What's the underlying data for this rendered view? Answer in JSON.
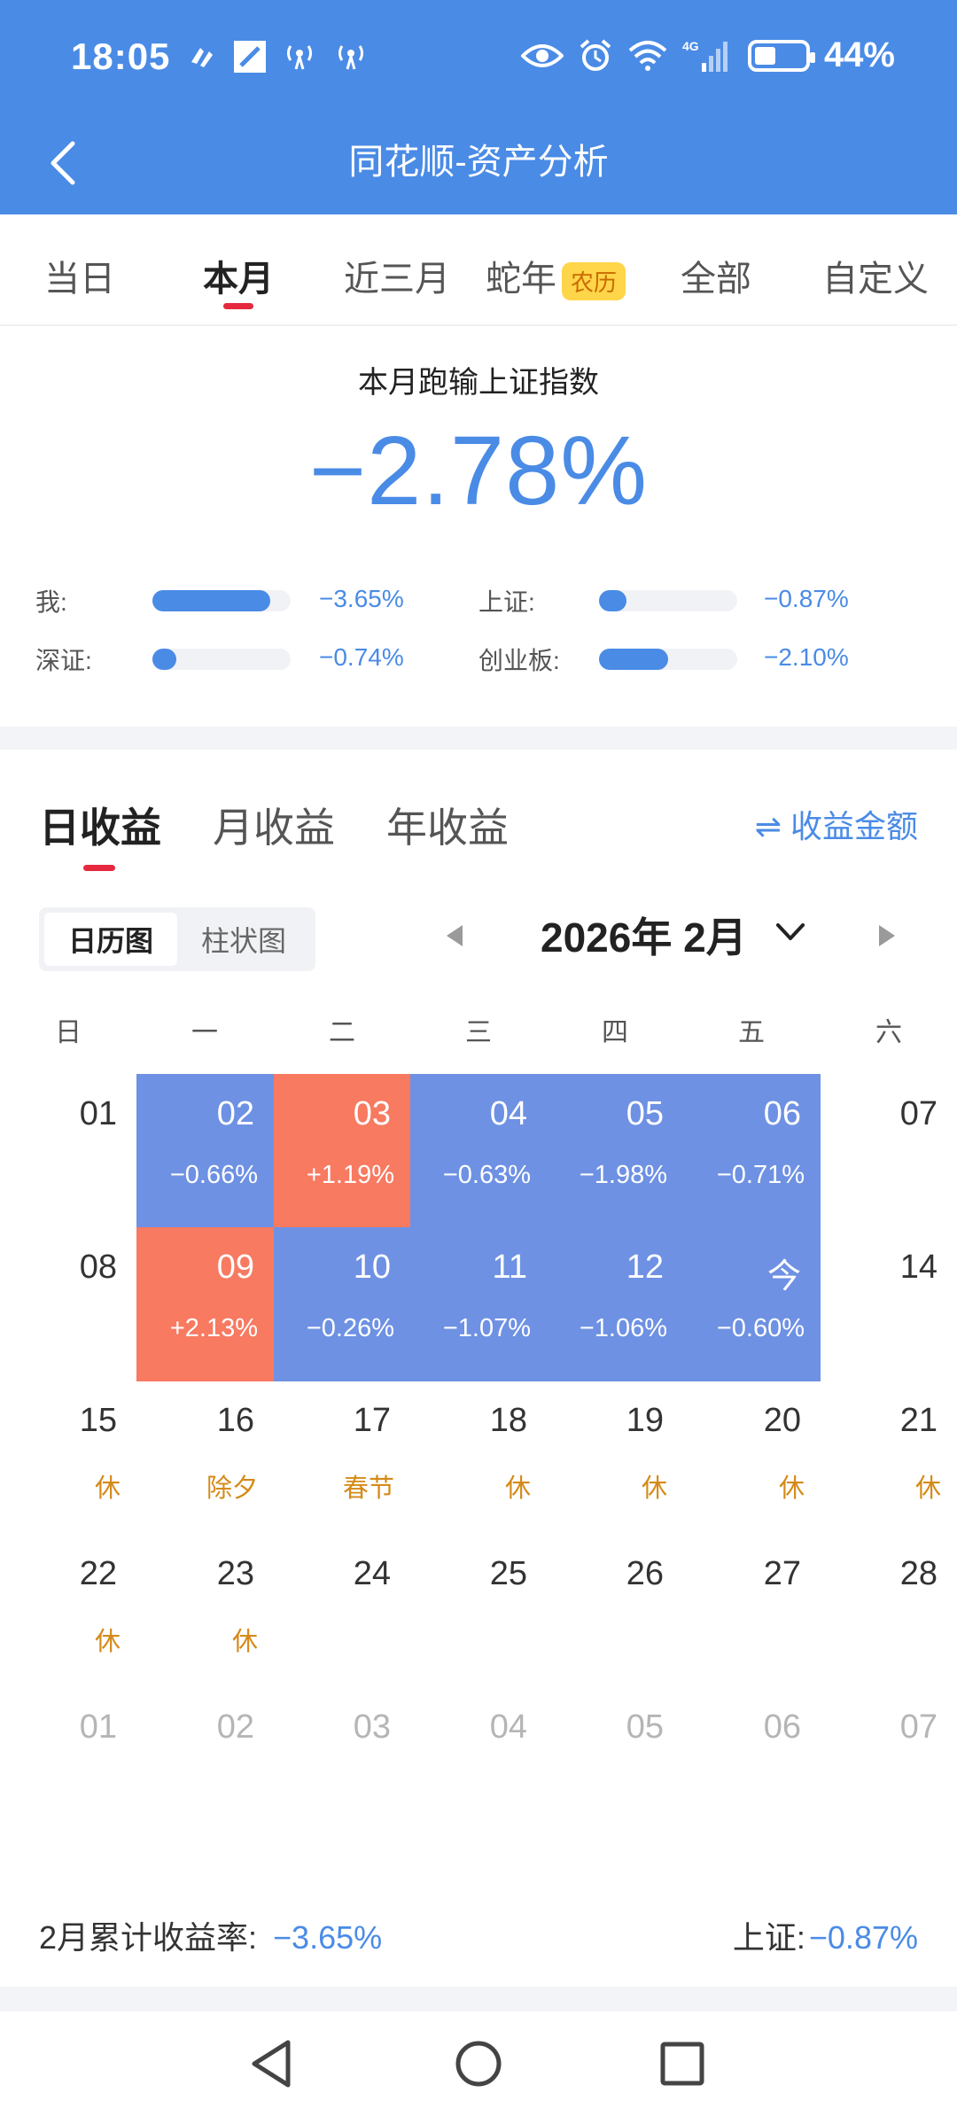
{
  "status_bar": {
    "time": "18:05",
    "network": "4G",
    "battery": "44%"
  },
  "header": {
    "title": "同花顺-资产分析"
  },
  "period_tabs": [
    {
      "label": "当日"
    },
    {
      "label": "本月"
    },
    {
      "label": "近三月"
    },
    {
      "label": "蛇年",
      "badge": "农历"
    },
    {
      "label": "全部"
    },
    {
      "label": "自定义"
    }
  ],
  "summary": {
    "title": "本月跑输上证指数",
    "diff": "−2.78%",
    "comparisons": [
      {
        "label": "我:",
        "value": "−3.65%",
        "fraction": 0.85
      },
      {
        "label": "上证:",
        "value": "−0.87%",
        "fraction": 0.2
      },
      {
        "label": "深证:",
        "value": "−0.74%",
        "fraction": 0.17
      },
      {
        "label": "创业板:",
        "value": "−2.10%",
        "fraction": 0.5
      }
    ]
  },
  "earnings": {
    "tabs": [
      "日收益",
      "月收益",
      "年收益"
    ],
    "toggle": "⇌ 收益金额",
    "view_modes": [
      "日历图",
      "柱状图"
    ],
    "month": "2026年 2月",
    "weekdays": [
      "日",
      "一",
      "二",
      "三",
      "四",
      "五",
      "六"
    ],
    "days": [
      {
        "d": "01",
        "sub": "",
        "kind": "plain"
      },
      {
        "d": "02",
        "sub": "−0.66%",
        "kind": "down"
      },
      {
        "d": "03",
        "sub": "+1.19%",
        "kind": "up"
      },
      {
        "d": "04",
        "sub": "−0.63%",
        "kind": "down"
      },
      {
        "d": "05",
        "sub": "−1.98%",
        "kind": "down"
      },
      {
        "d": "06",
        "sub": "−0.71%",
        "kind": "down"
      },
      {
        "d": "07",
        "sub": "",
        "kind": "plain"
      },
      {
        "d": "08",
        "sub": "",
        "kind": "plain"
      },
      {
        "d": "09",
        "sub": "+2.13%",
        "kind": "up"
      },
      {
        "d": "10",
        "sub": "−0.26%",
        "kind": "down"
      },
      {
        "d": "11",
        "sub": "−1.07%",
        "kind": "down"
      },
      {
        "d": "12",
        "sub": "−1.06%",
        "kind": "down"
      },
      {
        "d": "今",
        "sub": "−0.60%",
        "kind": "down"
      },
      {
        "d": "14",
        "sub": "",
        "kind": "plain"
      },
      {
        "d": "15",
        "sub": "休",
        "kind": "rest"
      },
      {
        "d": "16",
        "sub": "除夕",
        "kind": "rest"
      },
      {
        "d": "17",
        "sub": "春节",
        "kind": "rest"
      },
      {
        "d": "18",
        "sub": "休",
        "kind": "rest"
      },
      {
        "d": "19",
        "sub": "休",
        "kind": "rest"
      },
      {
        "d": "20",
        "sub": "休",
        "kind": "rest"
      },
      {
        "d": "21",
        "sub": "休",
        "kind": "rest"
      },
      {
        "d": "22",
        "sub": "休",
        "kind": "rest"
      },
      {
        "d": "23",
        "sub": "休",
        "kind": "rest"
      },
      {
        "d": "24",
        "sub": "",
        "kind": "plain"
      },
      {
        "d": "25",
        "sub": "",
        "kind": "plain"
      },
      {
        "d": "26",
        "sub": "",
        "kind": "plain"
      },
      {
        "d": "27",
        "sub": "",
        "kind": "plain"
      },
      {
        "d": "28",
        "sub": "",
        "kind": "plain"
      },
      {
        "d": "01",
        "sub": "",
        "kind": "next"
      },
      {
        "d": "02",
        "sub": "",
        "kind": "next"
      },
      {
        "d": "03",
        "sub": "",
        "kind": "next"
      },
      {
        "d": "04",
        "sub": "",
        "kind": "next"
      },
      {
        "d": "05",
        "sub": "",
        "kind": "next"
      },
      {
        "d": "06",
        "sub": "",
        "kind": "next"
      },
      {
        "d": "07",
        "sub": "",
        "kind": "next"
      }
    ],
    "footer": {
      "left_label": "2月累计收益率:",
      "left_value": "−3.65%",
      "right_label": "上证:",
      "right_value": "−0.87%"
    }
  },
  "colors": {
    "primary": "#4a8be6",
    "down": "#6e91e3",
    "up": "#f77a61",
    "accent_red": "#e5293f",
    "rest_orange": "#d58a18"
  }
}
